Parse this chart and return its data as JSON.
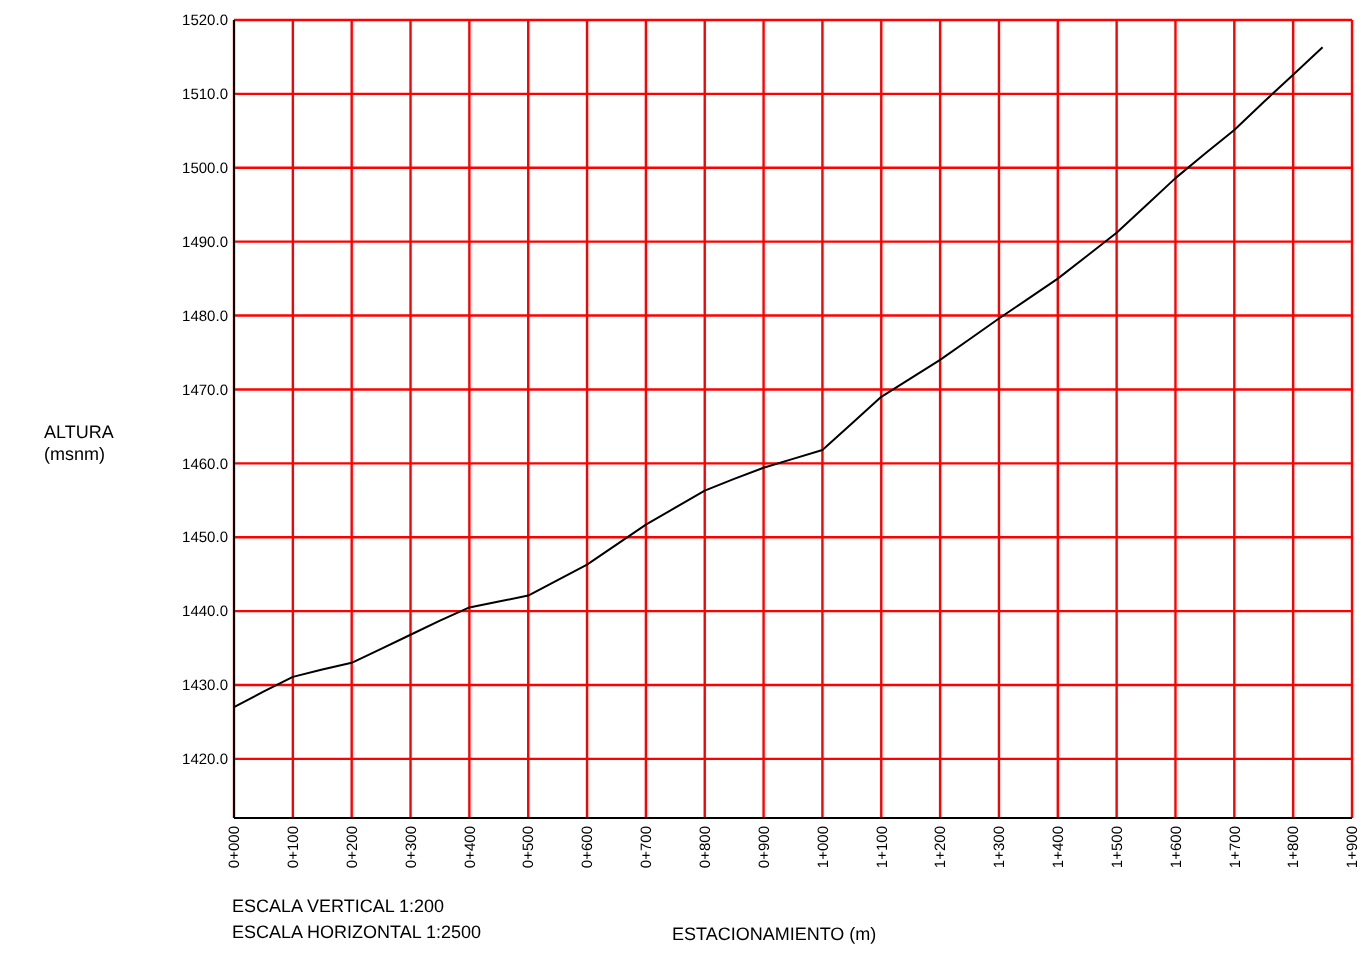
{
  "chart_data": {
    "type": "line",
    "xlabel": "ESTACIONAMIENTO (m)",
    "ylabel": "ALTURA\n(msnm)",
    "annotations": [
      "ESCALA VERTICAL 1:200",
      "ESCALA HORIZONTAL 1:2500"
    ],
    "categories": [
      "0+000",
      null,
      "0+100",
      null,
      "0+200",
      null,
      "0+300",
      null,
      "0+400",
      null,
      "0+500",
      null,
      "0+600",
      null,
      "0+700",
      null,
      "0+800",
      null,
      "0+900",
      null,
      "1+000",
      null,
      "1+100",
      null,
      "1+200",
      null,
      "1+300",
      null,
      "1+400",
      null,
      "1+500",
      null,
      "1+600",
      null,
      "1+700",
      null,
      "1+800",
      null,
      "1+900"
    ],
    "series": [
      {
        "color": "#000000",
        "values": [
          1427,
          1429.1,
          1431.1,
          1432.1,
          1433,
          1434.9,
          1436.8,
          1438.7,
          1440.5,
          1441.3,
          1442.1,
          1444.2,
          1446.3,
          1449,
          1451.7,
          1454,
          1456.3,
          1457.9,
          1459.4,
          1460.6,
          1461.8,
          1465.4,
          1469,
          1471.5,
          1474,
          1476.8,
          1479.6,
          1482.3,
          1485,
          1488.1,
          1491.2,
          1494.9,
          1498.6,
          1501.9,
          1505.1,
          1508.9,
          1512.6,
          1516.3,
          null
        ]
      }
    ],
    "ylim": [
      1412,
      1520
    ],
    "yticks": [
      {
        "value": 1420,
        "label": "1420.0"
      },
      {
        "value": 1430,
        "label": "1430.0"
      },
      {
        "value": 1440,
        "label": "1440.0"
      },
      {
        "value": 1450,
        "label": "1450.0"
      },
      {
        "value": 1460,
        "label": "1460.0"
      },
      {
        "value": 1470,
        "label": "1470.0"
      },
      {
        "value": 1480,
        "label": "1480.0"
      },
      {
        "value": 1490,
        "label": "1490.0"
      },
      {
        "value": 1500,
        "label": "1500.0"
      },
      {
        "value": 1510,
        "label": "1510.0"
      },
      {
        "value": 1520,
        "label": "1520.0"
      }
    ],
    "grid": true,
    "marker": "none",
    "line_style": "solid"
  }
}
